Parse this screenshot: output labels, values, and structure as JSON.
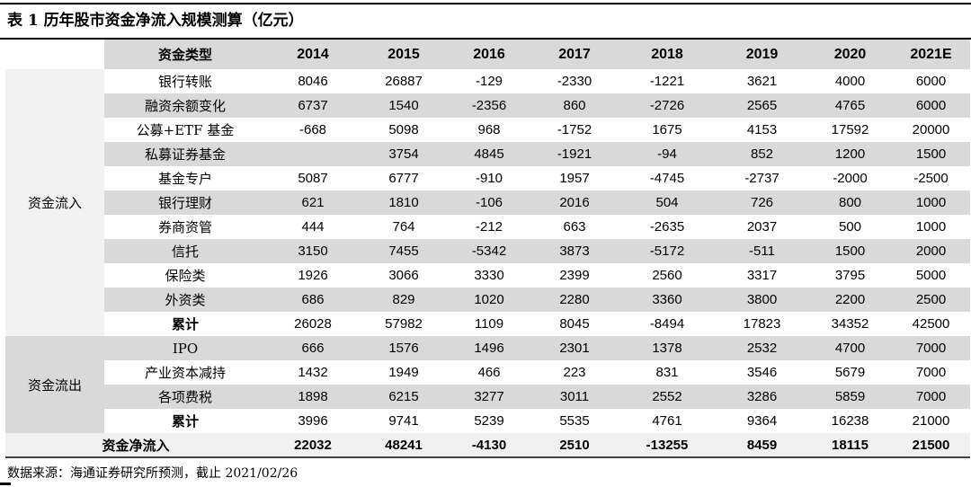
{
  "title": "表 1 历年股市资金净流入规模测算（亿元）",
  "footer": "数据来源：海通证券研究所预测，截止 2021/02/26",
  "colors": {
    "header_bg": "#d9d9d9",
    "stripe_bg": "#d9d9d9",
    "inflow_group_bg": "#f2f2f2",
    "outflow_group_bg": "#d9d9d9",
    "net_row_bg": "#f0f0f0",
    "rule_color": "#000000",
    "net_rule_color": "#404040"
  },
  "table": {
    "type_header": "资金类型",
    "years": [
      "2014",
      "2015",
      "2016",
      "2017",
      "2018",
      "2019",
      "2020",
      "2021E"
    ],
    "groups": [
      {
        "label": "资金流入",
        "rows": [
          {
            "label": "银行转账",
            "bold": false,
            "values": [
              "8046",
              "26887",
              "-129",
              "-2330",
              "-1221",
              "3621",
              "4000",
              "6000"
            ]
          },
          {
            "label": "融资余额变化",
            "bold": false,
            "values": [
              "6737",
              "1540",
              "-2356",
              "860",
              "-2726",
              "2565",
              "4765",
              "6000"
            ]
          },
          {
            "label": "公募+ETF 基金",
            "bold": false,
            "values": [
              "-668",
              "5098",
              "968",
              "-1752",
              "1675",
              "4153",
              "17592",
              "20000"
            ]
          },
          {
            "label": "私募证券基金",
            "bold": false,
            "values": [
              "",
              "3754",
              "4845",
              "-1921",
              "-94",
              "852",
              "1200",
              "1500"
            ]
          },
          {
            "label": "基金专户",
            "bold": false,
            "values": [
              "5087",
              "6777",
              "-910",
              "1957",
              "-4745",
              "-2737",
              "-2000",
              "-2500"
            ]
          },
          {
            "label": "银行理财",
            "bold": false,
            "values": [
              "621",
              "1810",
              "-106",
              "2016",
              "504",
              "726",
              "800",
              "1000"
            ]
          },
          {
            "label": "券商资管",
            "bold": false,
            "values": [
              "444",
              "764",
              "-212",
              "663",
              "-2635",
              "2037",
              "500",
              "1000"
            ]
          },
          {
            "label": "信托",
            "bold": false,
            "values": [
              "3150",
              "7455",
              "-5342",
              "3873",
              "-5172",
              "-511",
              "1500",
              "2000"
            ]
          },
          {
            "label": "保险类",
            "bold": false,
            "values": [
              "1926",
              "3066",
              "3330",
              "2399",
              "2560",
              "3317",
              "3795",
              "5000"
            ]
          },
          {
            "label": "外资类",
            "bold": false,
            "values": [
              "686",
              "829",
              "1020",
              "2280",
              "3360",
              "3800",
              "2200",
              "2500"
            ]
          },
          {
            "label": "累计",
            "bold": true,
            "values": [
              "26028",
              "57982",
              "1109",
              "8045",
              "-8494",
              "17823",
              "34352",
              "42500"
            ]
          }
        ]
      },
      {
        "label": "资金流出",
        "rows": [
          {
            "label": "IPO",
            "bold": false,
            "values": [
              "666",
              "1576",
              "1496",
              "2301",
              "1378",
              "2532",
              "4700",
              "7000"
            ]
          },
          {
            "label": "产业资本减持",
            "bold": false,
            "values": [
              "1432",
              "1949",
              "466",
              "223",
              "831",
              "3546",
              "5679",
              "7000"
            ]
          },
          {
            "label": "各项费税",
            "bold": false,
            "values": [
              "1898",
              "6215",
              "3277",
              "3011",
              "2552",
              "3286",
              "5859",
              "7000"
            ]
          },
          {
            "label": "累计",
            "bold": true,
            "values": [
              "3996",
              "9741",
              "5239",
              "5535",
              "4761",
              "9364",
              "16238",
              "21000"
            ]
          }
        ]
      }
    ],
    "net_row": {
      "label": "资金净流入",
      "values": [
        "22032",
        "48241",
        "-4130",
        "2510",
        "-13255",
        "8459",
        "18115",
        "21500"
      ]
    }
  }
}
